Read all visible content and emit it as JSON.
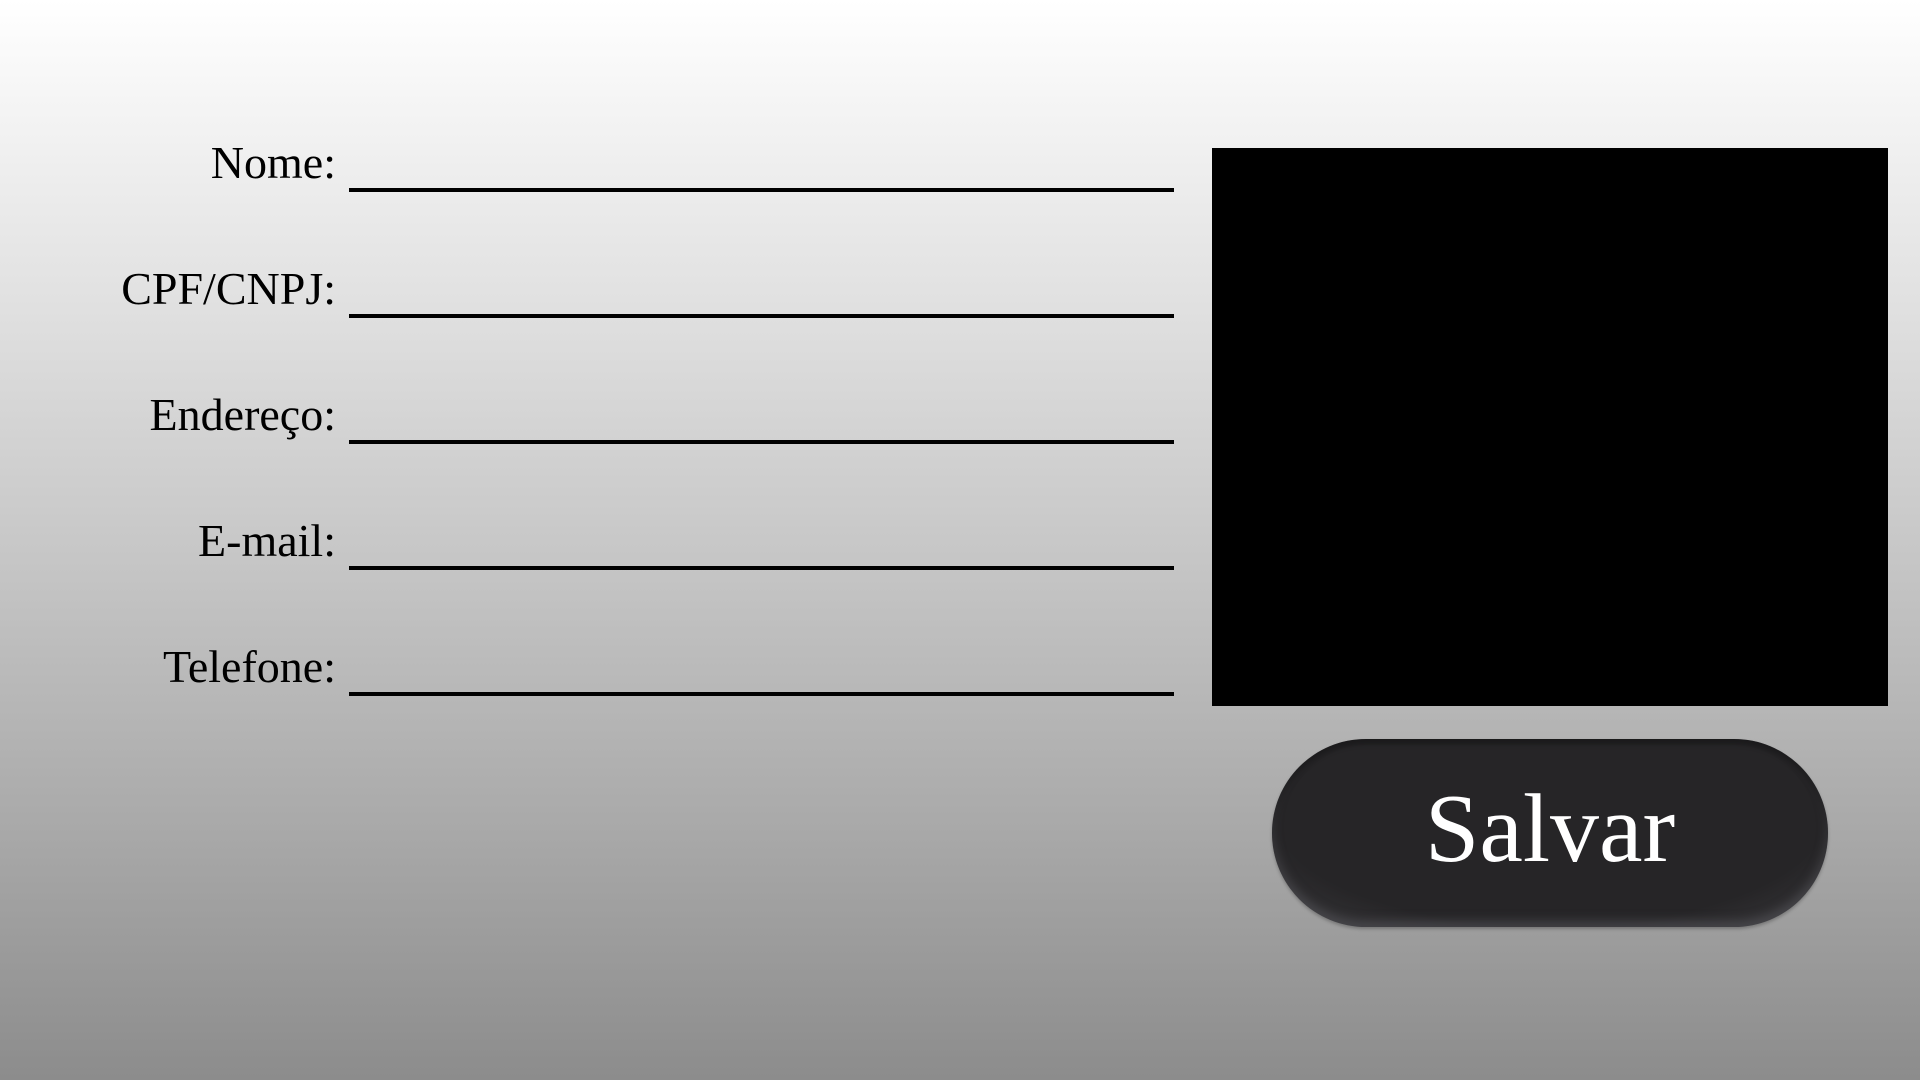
{
  "form": {
    "fields": [
      {
        "label": "Nome:",
        "value": "",
        "placeholder": ""
      },
      {
        "label": "CPF/CNPJ:",
        "value": "",
        "placeholder": ""
      },
      {
        "label": "Endereço:",
        "value": "",
        "placeholder": ""
      },
      {
        "label": "E-mail:",
        "value": "",
        "placeholder": ""
      },
      {
        "label": "Telefone:",
        "value": "",
        "placeholder": ""
      }
    ]
  },
  "actions": {
    "save_label": "Salvar"
  },
  "colors": {
    "background_top": "#ffffff",
    "background_bottom": "#8c8c8c",
    "preview_panel": "#000000",
    "button_bg": "#262527",
    "button_text": "#ffffff"
  }
}
